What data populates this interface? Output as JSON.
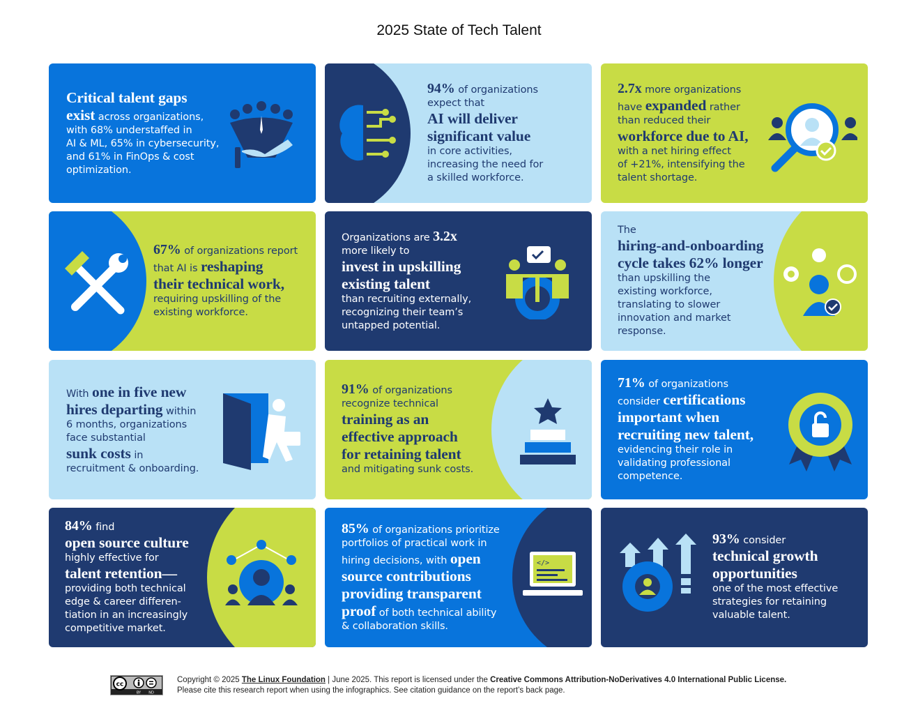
{
  "title": "2025 State of Tech Talent",
  "colors": {
    "blue": "#0874dc",
    "navy": "#1f3a70",
    "light": "#b9e1f6",
    "lime": "#c8dc45",
    "white": "#ffffff"
  },
  "cards": [
    {
      "id": "critical-talent-gaps",
      "bg": "blue",
      "fg": "white",
      "icon": "people-in-hand-icon",
      "lines": [
        [
          {
            "t": "Critical talent gaps",
            "s": "h"
          }
        ],
        [
          {
            "t": "exist",
            "s": "h"
          },
          {
            "t": " across organizations,",
            "s": "n"
          }
        ],
        [
          {
            "t": "with 68% understaffed in",
            "s": "n"
          }
        ],
        [
          {
            "t": "AI & ML, 65% in cybersecurity,",
            "s": "n"
          }
        ],
        [
          {
            "t": "and 61% in FinOps & cost",
            "s": "n"
          }
        ],
        [
          {
            "t": "optimization.",
            "s": "n"
          }
        ]
      ]
    },
    {
      "id": "ai-value",
      "bg": "light",
      "fg": "navy",
      "icon": "ai-brain-icon",
      "lines": [
        [
          {
            "t": "94%",
            "s": "b"
          },
          {
            "t": " of organizations",
            "s": "n"
          }
        ],
        [
          {
            "t": "expect that",
            "s": "n"
          }
        ],
        [
          {
            "t": "AI will deliver",
            "s": "h"
          }
        ],
        [
          {
            "t": "significant value",
            "s": "h"
          }
        ],
        [
          {
            "t": "in core activities,",
            "s": "n"
          }
        ],
        [
          {
            "t": "increasing the need for",
            "s": "n"
          }
        ],
        [
          {
            "t": "a skilled workforce.",
            "s": "n"
          }
        ]
      ]
    },
    {
      "id": "workforce-expanded",
      "bg": "lime",
      "fg": "navy",
      "icon": "magnifier-people-icon",
      "lines": [
        [
          {
            "t": "2.7x",
            "s": "b"
          },
          {
            "t": " more organizations",
            "s": "n"
          }
        ],
        [
          {
            "t": "have ",
            "s": "n"
          },
          {
            "t": "expanded",
            "s": "h"
          },
          {
            "t": " rather",
            "s": "n"
          }
        ],
        [
          {
            "t": "than reduced their",
            "s": "n"
          }
        ],
        [
          {
            "t": "workforce due to AI,",
            "s": "h"
          }
        ],
        [
          {
            "t": "with a net hiring effect",
            "s": "n"
          }
        ],
        [
          {
            "t": "of +21%, intensifying the",
            "s": "n"
          }
        ],
        [
          {
            "t": "talent shortage.",
            "s": "n"
          }
        ]
      ]
    },
    {
      "id": "reshaping-work",
      "bg": "lime",
      "fg": "navy",
      "icon": "hammer-wrench-icon",
      "lines": [
        [
          {
            "t": "67%",
            "s": "b"
          },
          {
            "t": " of organizations report",
            "s": "n"
          }
        ],
        [
          {
            "t": "that AI is ",
            "s": "n"
          },
          {
            "t": "reshaping",
            "s": "h"
          }
        ],
        [
          {
            "t": "their technical work,",
            "s": "h"
          }
        ],
        [
          {
            "t": "requiring upskilling of the",
            "s": "n"
          }
        ],
        [
          {
            "t": "existing workforce.",
            "s": "n"
          }
        ]
      ]
    },
    {
      "id": "invest-upskilling",
      "bg": "navy",
      "fg": "white",
      "icon": "meeting-gear-icon",
      "lines": [
        [
          {
            "t": "Organizations are ",
            "s": "n"
          },
          {
            "t": "3.2x",
            "s": "b"
          }
        ],
        [
          {
            "t": "more likely to",
            "s": "n"
          }
        ],
        [
          {
            "t": "invest in upskilling",
            "s": "h"
          }
        ],
        [
          {
            "t": "existing talent",
            "s": "h"
          }
        ],
        [
          {
            "t": "than recruiting externally,",
            "s": "n"
          }
        ],
        [
          {
            "t": "recognizing their team’s",
            "s": "n"
          }
        ],
        [
          {
            "t": "untapped potential.",
            "s": "n"
          }
        ]
      ]
    },
    {
      "id": "hiring-cycle",
      "bg": "light",
      "fg": "navy",
      "icon": "person-ideas-icon",
      "lines": [
        [
          {
            "t": "The",
            "s": "n"
          }
        ],
        [
          {
            "t": "hiring-and-onboarding",
            "s": "h"
          }
        ],
        [
          {
            "t": "cycle takes 62% longer",
            "s": "h"
          }
        ],
        [
          {
            "t": "than upskilling the",
            "s": "n"
          }
        ],
        [
          {
            "t": "existing workforce,",
            "s": "n"
          }
        ],
        [
          {
            "t": "translating to slower",
            "s": "n"
          }
        ],
        [
          {
            "t": "innovation and market",
            "s": "n"
          }
        ],
        [
          {
            "t": "response.",
            "s": "n"
          }
        ]
      ]
    },
    {
      "id": "hires-departing",
      "bg": "light",
      "fg": "navy",
      "icon": "person-leaving-door-icon",
      "lines": [
        [
          {
            "t": "With ",
            "s": "n"
          },
          {
            "t": "one in five new",
            "s": "h"
          }
        ],
        [
          {
            "t": "hires departing",
            "s": "h"
          },
          {
            "t": " within",
            "s": "n"
          }
        ],
        [
          {
            "t": "6 months, organizations",
            "s": "n"
          }
        ],
        [
          {
            "t": "face substantial",
            "s": "n"
          }
        ],
        [
          {
            "t": "sunk costs",
            "s": "h"
          },
          {
            "t": " in",
            "s": "n"
          }
        ],
        [
          {
            "t": "recruitment & onboarding.",
            "s": "n"
          }
        ]
      ]
    },
    {
      "id": "training-retaining",
      "bg": "lime",
      "fg": "navy",
      "icon": "podium-star-icon",
      "lines": [
        [
          {
            "t": "91%",
            "s": "b"
          },
          {
            "t": " of organizations",
            "s": "n"
          }
        ],
        [
          {
            "t": "recognize technical",
            "s": "n"
          }
        ],
        [
          {
            "t": "training as an",
            "s": "h"
          }
        ],
        [
          {
            "t": "effective approach",
            "s": "h"
          }
        ],
        [
          {
            "t": "for retaining talent",
            "s": "h"
          }
        ],
        [
          {
            "t": "and mitigating sunk costs.",
            "s": "n"
          }
        ]
      ]
    },
    {
      "id": "certifications",
      "bg": "blue",
      "fg": "white",
      "icon": "certification-badge-icon",
      "lines": [
        [
          {
            "t": "71%",
            "s": "b"
          },
          {
            "t": " of organizations",
            "s": "n"
          }
        ],
        [
          {
            "t": "consider ",
            "s": "n"
          },
          {
            "t": "certifications",
            "s": "h"
          }
        ],
        [
          {
            "t": "important when",
            "s": "h"
          }
        ],
        [
          {
            "t": "recruiting new talent,",
            "s": "h"
          }
        ],
        [
          {
            "t": "evidencing their role in",
            "s": "n"
          }
        ],
        [
          {
            "t": "validating professional",
            "s": "n"
          }
        ],
        [
          {
            "t": "competence.",
            "s": "n"
          }
        ]
      ]
    },
    {
      "id": "open-source-culture",
      "bg": "navy",
      "fg": "white",
      "icon": "community-gear-icon",
      "lines": [
        [
          {
            "t": "84%",
            "s": "b"
          },
          {
            "t": " find",
            "s": "n"
          }
        ],
        [
          {
            "t": "open source culture",
            "s": "h"
          }
        ],
        [
          {
            "t": "highly effective for",
            "s": "n"
          }
        ],
        [
          {
            "t": "talent retention—",
            "s": "h"
          }
        ],
        [
          {
            "t": "providing both technical",
            "s": "n"
          }
        ],
        [
          {
            "t": "edge & career differen-",
            "s": "n"
          }
        ],
        [
          {
            "t": "tiation in an increasingly",
            "s": "n"
          }
        ],
        [
          {
            "t": "competitive market.",
            "s": "n"
          }
        ]
      ]
    },
    {
      "id": "portfolios",
      "bg": "blue",
      "fg": "white",
      "icon": "laptop-code-icon",
      "lines": [
        [
          {
            "t": "85%",
            "s": "b"
          },
          {
            "t": " of organizations prioritize",
            "s": "n"
          }
        ],
        [
          {
            "t": "portfolios of practical work in",
            "s": "n"
          }
        ],
        [
          {
            "t": "hiring decisions, with ",
            "s": "n"
          },
          {
            "t": "open",
            "s": "h"
          }
        ],
        [
          {
            "t": "source contributions",
            "s": "h"
          }
        ],
        [
          {
            "t": "providing transparent",
            "s": "h"
          }
        ],
        [
          {
            "t": "proof",
            "s": "h"
          },
          {
            "t": " of both technical ability",
            "s": "n"
          }
        ],
        [
          {
            "t": "& collaboration skills.",
            "s": "n"
          }
        ]
      ]
    },
    {
      "id": "technical-growth",
      "bg": "navy",
      "fg": "white",
      "icon": "growth-arrows-gear-icon",
      "lines": [
        [
          {
            "t": "93%",
            "s": "b"
          },
          {
            "t": " consider",
            "s": "n"
          }
        ],
        [
          {
            "t": "technical growth",
            "s": "h"
          }
        ],
        [
          {
            "t": "opportunities",
            "s": "h"
          }
        ],
        [
          {
            "t": "one of the most effective",
            "s": "n"
          }
        ],
        [
          {
            "t": "strategies for retaining",
            "s": "n"
          }
        ],
        [
          {
            "t": "valuable talent.",
            "s": "n"
          }
        ]
      ]
    }
  ],
  "footer": {
    "license_badge": "CC BY ND",
    "copyright_prefix": "Copyright © 2025 ",
    "org": "The Linux Foundation",
    "mid": " | June 2025. This report is licensed under the ",
    "license": "Creative Commons Attribution-NoDerivatives 4.0 International Public License.",
    "line2": "Please cite this research report when using the infographics. See citation guidance on the report’s back page."
  }
}
